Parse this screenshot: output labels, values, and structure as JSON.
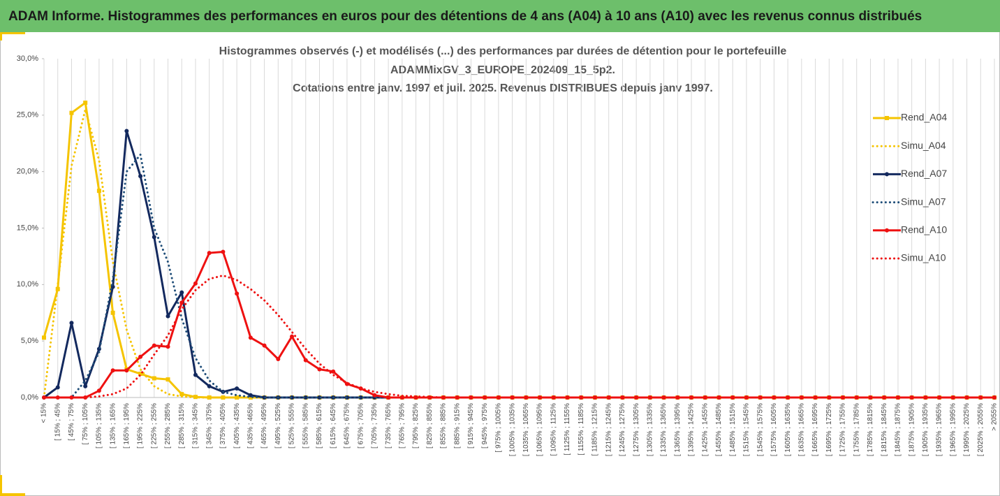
{
  "header": {
    "title": "ADAM Informe. Histogrammes des performances en euros pour des détentions de 4 ans (A04) à 10 ans (A10) avec les revenus connus distribués"
  },
  "chart_data": {
    "type": "line",
    "title": [
      "Histogrammes observés (-) et modélisés (...) des performances par durées de détention pour le portefeuille",
      "ADAMMixGV_3_EUROPE_202409_15_5p2.",
      "Cotations entre janv. 1997 et juil. 2025. Revenus DISTRIBUES depuis janv 1997."
    ],
    "categories": [
      "< 15%",
      "[ 15% ; 45%",
      "[ 45% ; 75%",
      "[ 75% ; 105%",
      "[ 105% ; 135%",
      "[ 135% ; 165%",
      "[ 165% ; 195%",
      "[ 195% ; 225%",
      "[ 225% ; 255%",
      "[ 255% ; 285%",
      "[ 285% ; 315%",
      "[ 315% ; 345%",
      "[ 345% ; 375%",
      "[ 375% ; 405%",
      "[ 405% ; 435%",
      "[ 435% ; 465%",
      "[ 465% ; 495%",
      "[ 495% ; 525%",
      "[ 525% ; 555%",
      "[ 555% ; 585%",
      "[ 585% ; 615%",
      "[ 615% ; 645%",
      "[ 645% ; 675%",
      "[ 675% ; 705%",
      "[ 705% ; 735%",
      "[ 735% ; 765%",
      "[ 765% ; 795%",
      "[ 795% ; 825%",
      "[ 825% ; 855%",
      "[ 855% ; 885%",
      "[ 885% ; 915%",
      "[ 915% ; 945%",
      "[ 945% ; 975%",
      "[ 975% ; 1005%",
      "[ 1005% ; 1035%",
      "[ 1035% ; 1065%",
      "[ 1065% ; 1095%",
      "[ 1095% ; 1125%",
      "[ 1125% ; 1155%",
      "[ 1155% ; 1185%",
      "[ 1185% ; 1215%",
      "[ 1215% ; 1245%",
      "[ 1245% ; 1275%",
      "[ 1275% ; 1305%",
      "[ 1305% ; 1335%",
      "[ 1335% ; 1365%",
      "[ 1365% ; 1395%",
      "[ 1395% ; 1425%",
      "[ 1425% ; 1455%",
      "[ 1455% ; 1485%",
      "[ 1485% ; 1515%",
      "[ 1515% ; 1545%",
      "[ 1545% ; 1575%",
      "[ 1575% ; 1605%",
      "[ 1605% ; 1635%",
      "[ 1635% ; 1665%",
      "[ 1665% ; 1695%",
      "[ 1695% ; 1725%",
      "[ 1725% ; 1755%",
      "[ 1755% ; 1785%",
      "[ 1785% ; 1815%",
      "[ 1815% ; 1845%",
      "[ 1845% ; 1875%",
      "[ 1875% ; 1905%",
      "[ 1905% ; 1935%",
      "[ 1935% ; 1965%",
      "[ 1965% ; 1995%",
      "[ 1995% ; 2025%",
      "[ 2025% ; 2055%",
      "> 2055%"
    ],
    "series": [
      {
        "name": "Rend_A04",
        "color": "#f5c400",
        "line_style": "solid",
        "marker": "square",
        "values": [
          5.3,
          9.6,
          25.2,
          26.1,
          18.3,
          7.5,
          2.5,
          2.1,
          1.7,
          1.6,
          0.3,
          0.05,
          0,
          0,
          0,
          0,
          0,
          0,
          0,
          0,
          0,
          0,
          0,
          0,
          0,
          0,
          0,
          0,
          0,
          0,
          0,
          0,
          0,
          0,
          0,
          0,
          0,
          0,
          0,
          0,
          0,
          0,
          0,
          0,
          0,
          0,
          0,
          0,
          0,
          0,
          0,
          0,
          0,
          0,
          0,
          0,
          0,
          0,
          0,
          0,
          0,
          0,
          0,
          0,
          0,
          0,
          0,
          0,
          0,
          0
        ]
      },
      {
        "name": "Simu_A04",
        "color": "#f5c400",
        "line_style": "dotted",
        "marker": null,
        "values": [
          0,
          10,
          20.5,
          25.5,
          21,
          12,
          6,
          2.5,
          1,
          0.3,
          0.1,
          0,
          0,
          0,
          0,
          0,
          0,
          0,
          0,
          0,
          0,
          0,
          0,
          0,
          0,
          0,
          0,
          0,
          0,
          0,
          0,
          0,
          0,
          0,
          0,
          0,
          0,
          0,
          0,
          0,
          0,
          0,
          0,
          0,
          0,
          0,
          0,
          0,
          0,
          0,
          0,
          0,
          0,
          0,
          0,
          0,
          0,
          0,
          0,
          0,
          0,
          0,
          0,
          0,
          0,
          0,
          0,
          0,
          0,
          0
        ]
      },
      {
        "name": "Rend_A07",
        "color": "#13295e",
        "line_style": "solid",
        "marker": "circle",
        "values": [
          0,
          0.9,
          6.6,
          1.0,
          4.3,
          9.8,
          23.6,
          19.6,
          14.2,
          7.2,
          9.3,
          2.0,
          1.0,
          0.5,
          0.8,
          0.2,
          0,
          0,
          0,
          0,
          0,
          0,
          0,
          0,
          0,
          0,
          0,
          0,
          0,
          0,
          0,
          0,
          0,
          0,
          0,
          0,
          0,
          0,
          0,
          0,
          0,
          0,
          0,
          0,
          0,
          0,
          0,
          0,
          0,
          0,
          0,
          0,
          0,
          0,
          0,
          0,
          0,
          0,
          0,
          0,
          0,
          0,
          0,
          0,
          0,
          0,
          0,
          0,
          0,
          0
        ]
      },
      {
        "name": "Simu_A07",
        "color": "#1f4e79",
        "line_style": "dotted",
        "marker": null,
        "values": [
          0,
          0,
          0,
          1.5,
          4,
          10.5,
          20,
          21.5,
          15,
          12,
          7,
          3.5,
          1.5,
          0.5,
          0.2,
          0.05,
          0,
          0,
          0,
          0,
          0,
          0,
          0,
          0,
          0,
          0,
          0,
          0,
          0,
          0,
          0,
          0,
          0,
          0,
          0,
          0,
          0,
          0,
          0,
          0,
          0,
          0,
          0,
          0,
          0,
          0,
          0,
          0,
          0,
          0,
          0,
          0,
          0,
          0,
          0,
          0,
          0,
          0,
          0,
          0,
          0,
          0,
          0,
          0,
          0,
          0,
          0,
          0,
          0,
          0
        ]
      },
      {
        "name": "Rend_A10",
        "color": "#ee1111",
        "line_style": "solid",
        "marker": "circle",
        "values": [
          0,
          0,
          0,
          0,
          0.6,
          2.4,
          2.4,
          3.6,
          4.6,
          4.5,
          8.4,
          10.1,
          12.8,
          12.9,
          9.2,
          5.3,
          4.6,
          3.4,
          5.4,
          3.3,
          2.5,
          2.3,
          1.2,
          0.8,
          0.2,
          0,
          0,
          0,
          0,
          0,
          0,
          0,
          0,
          0,
          0,
          0,
          0,
          0,
          0,
          0,
          0,
          0,
          0,
          0,
          0,
          0,
          0,
          0,
          0,
          0,
          0,
          0,
          0,
          0,
          0,
          0,
          0,
          0,
          0,
          0,
          0,
          0,
          0,
          0,
          0,
          0,
          0,
          0,
          0,
          0
        ]
      },
      {
        "name": "Simu_A10",
        "color": "#ee1111",
        "line_style": "dotted",
        "marker": null,
        "values": [
          0,
          0,
          0,
          0,
          0.1,
          0.3,
          0.8,
          2,
          3.8,
          5.5,
          7.8,
          9.5,
          10.5,
          10.8,
          10.4,
          9.6,
          8.6,
          7.3,
          5.8,
          4.3,
          3.0,
          2.0,
          1.3,
          0.8,
          0.5,
          0.3,
          0.15,
          0.1,
          0.05,
          0,
          0,
          0,
          0,
          0,
          0,
          0,
          0,
          0,
          0,
          0,
          0,
          0,
          0,
          0,
          0,
          0,
          0,
          0,
          0,
          0,
          0,
          0,
          0,
          0,
          0,
          0,
          0,
          0,
          0,
          0,
          0,
          0,
          0,
          0,
          0,
          0,
          0,
          0,
          0,
          0
        ]
      }
    ],
    "ylim": [
      0,
      30
    ],
    "yticks": [
      {
        "value": 0,
        "label": "0,0%"
      },
      {
        "value": 5,
        "label": "5,0%"
      },
      {
        "value": 10,
        "label": "10,0%"
      },
      {
        "value": 15,
        "label": "15,0%"
      },
      {
        "value": 20,
        "label": "20,0%"
      },
      {
        "value": 25,
        "label": "25,0%"
      },
      {
        "value": 30,
        "label": "30,0%"
      }
    ],
    "grid": "vertical",
    "legend": "right"
  }
}
